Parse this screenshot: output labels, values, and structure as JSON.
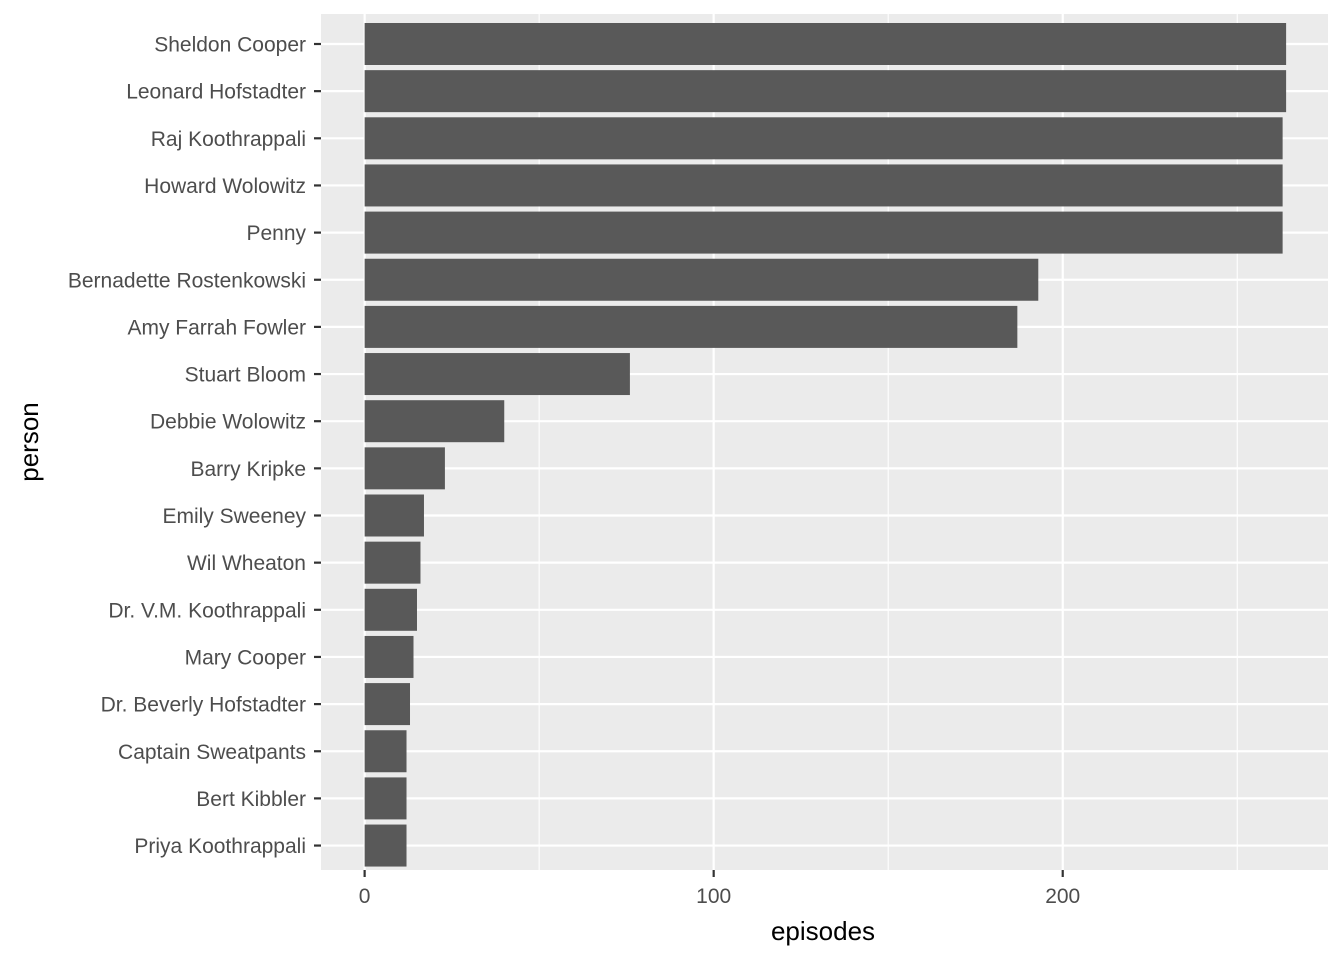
{
  "chart_data": {
    "type": "bar",
    "orientation": "horizontal",
    "xlabel": "episodes",
    "ylabel": "person",
    "xlim": [
      -12.5,
      276
    ],
    "x_ticks": [
      0,
      100,
      200
    ],
    "x_minor_ticks": [
      50,
      150,
      250
    ],
    "grid": true,
    "legend": "none",
    "colors": {
      "panel": "#ebebeb",
      "bar": "#595959",
      "grid": "#ffffff",
      "tick_text": "#4d4d4d",
      "title_text": "#000000"
    },
    "categories": [
      "Sheldon Cooper",
      "Leonard Hofstadter",
      "Raj Koothrappali",
      "Howard Wolowitz",
      "Penny",
      "Bernadette Rostenkowski",
      "Amy Farrah Fowler",
      "Stuart Bloom",
      "Debbie Wolowitz",
      "Barry Kripke",
      "Emily Sweeney",
      "Wil Wheaton",
      "Dr. V.M. Koothrappali",
      "Mary Cooper",
      "Dr. Beverly Hofstadter",
      "Captain Sweatpants",
      "Bert Kibbler",
      "Priya Koothrappali"
    ],
    "values": [
      264,
      264,
      263,
      263,
      263,
      193,
      187,
      76,
      40,
      23,
      17,
      16,
      15,
      14,
      13,
      12,
      12,
      12
    ]
  }
}
